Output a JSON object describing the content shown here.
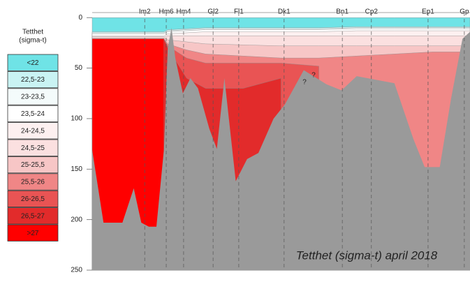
{
  "chart_data": {
    "type": "section",
    "title": "Tetthet (sigma-t) april 2018",
    "legend_title": [
      "Tetthet",
      "(sigma-t)"
    ],
    "xlim": [
      0,
      100
    ],
    "ylim": [
      -5,
      250
    ],
    "yticks": [
      0,
      50,
      100,
      150,
      200,
      250
    ],
    "stations": [
      {
        "name": "Im2",
        "x": 13.9
      },
      {
        "name": "Hm6",
        "x": 19.6
      },
      {
        "name": "Hm4",
        "x": 24.2
      },
      {
        "name": "Gl2",
        "x": 32.0
      },
      {
        "name": "Fl1",
        "x": 38.8
      },
      {
        "name": "Dk1",
        "x": 50.8
      },
      {
        "name": "Bn1",
        "x": 66.2
      },
      {
        "name": "Cp2",
        "x": 73.9
      },
      {
        "name": "Ep1",
        "x": 88.9
      },
      {
        "name": "Gp",
        "x": 98.5
      }
    ],
    "layer_x": [
      0,
      19,
      20,
      25,
      30,
      40,
      50,
      60,
      70,
      80,
      90,
      100
    ],
    "series": [
      {
        "name": "<22",
        "color": "#6fe3e6",
        "values": [
          0,
          0,
          0,
          0,
          0,
          0,
          0,
          0,
          0,
          0,
          0,
          0
        ]
      },
      {
        "name": "22,5-23",
        "color": "#c9f3f3",
        "values": [
          14,
          14,
          12,
          11,
          10,
          10,
          10,
          10,
          9,
          9,
          9,
          9
        ]
      },
      {
        "name": "23-23,5",
        "color": "#f4fbfb",
        "values": [
          15,
          15,
          13,
          12,
          11,
          11,
          11,
          11,
          10,
          10,
          10,
          10
        ]
      },
      {
        "name": "23,5-24",
        "color": "#ffffff",
        "values": [
          16,
          16,
          14,
          13,
          12,
          12,
          12,
          12,
          11,
          11,
          11,
          11
        ]
      },
      {
        "name": "24-24,5",
        "color": "#fdf0f0",
        "values": [
          18,
          18,
          16,
          15,
          14,
          14,
          14,
          14,
          13,
          13,
          13,
          13
        ]
      },
      {
        "name": "24,5-25",
        "color": "#fbe0e0",
        "values": [
          19,
          19,
          18,
          18,
          18,
          18,
          18,
          18,
          18,
          18,
          18,
          18
        ]
      },
      {
        "name": "25-25,5",
        "color": "#f7c6c6",
        "values": [
          20,
          20,
          22,
          24,
          26,
          27,
          28,
          28,
          28,
          28,
          28,
          28
        ]
      },
      {
        "name": "25,5-26",
        "color": "#f08686",
        "values": [
          21,
          21,
          26,
          32,
          36,
          38,
          40,
          40,
          38,
          36,
          34,
          34
        ]
      },
      {
        "name": "26-26,5",
        "color": "#e95454",
        "values": [
          21,
          21,
          28,
          40,
          45,
          45,
          45,
          48,
          null,
          null,
          null,
          null
        ]
      },
      {
        "name": "26,5-27",
        "color": "#e22b2b",
        "values": [
          21,
          21,
          30,
          60,
          70,
          70,
          60,
          null,
          null,
          null,
          null,
          null
        ]
      },
      {
        "name": ">27",
        "color": "#ff0000",
        "values": [
          21,
          21,
          null,
          null,
          null,
          null,
          null,
          null,
          null,
          null,
          null,
          null
        ]
      }
    ],
    "seabed": {
      "color": "#9a9a9a",
      "x": [
        0,
        3,
        8,
        11,
        13,
        15,
        17,
        19,
        20,
        21,
        22,
        24,
        26,
        28,
        31,
        33,
        35,
        38,
        41,
        44,
        48,
        51,
        56,
        62,
        66,
        70,
        80,
        85,
        88,
        92,
        95,
        98,
        100
      ],
      "depth": [
        131,
        203,
        203,
        169,
        203,
        207,
        207,
        130,
        30,
        10,
        40,
        75,
        60,
        70,
        110,
        130,
        60,
        162,
        140,
        134,
        100,
        86,
        52,
        66,
        72,
        58,
        65,
        120,
        148,
        148,
        80,
        21,
        14
      ]
    },
    "annotations": [
      {
        "text": "?",
        "x": 56.2,
        "depth": 64
      },
      {
        "text": "?",
        "x": 58.6,
        "depth": 57
      }
    ]
  }
}
